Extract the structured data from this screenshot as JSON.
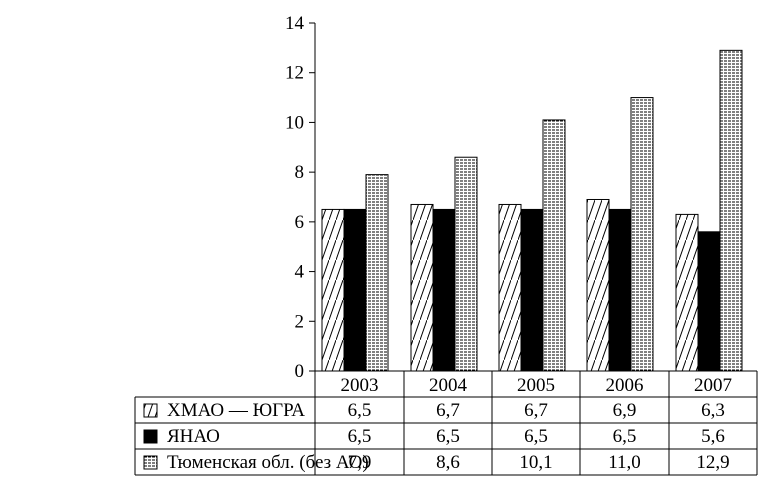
{
  "chart_data": {
    "type": "bar",
    "categories": [
      "2003",
      "2004",
      "2005",
      "2006",
      "2007"
    ],
    "series": [
      {
        "name": "ХМАО — ЮГРА",
        "pattern": "diagonal",
        "values_display": [
          "6,5",
          "6,7",
          "6,7",
          "6,9",
          "6,3"
        ],
        "values": [
          6.5,
          6.7,
          6.7,
          6.9,
          6.3
        ]
      },
      {
        "name": "ЯНАО",
        "pattern": "solid",
        "values_display": [
          "6,5",
          "6,5",
          "6,5",
          "6,5",
          "5,6"
        ],
        "values": [
          6.5,
          6.5,
          6.5,
          6.5,
          5.6
        ]
      },
      {
        "name": "Тюменская обл. (без АО)",
        "pattern": "horizontal-dashed",
        "values_display": [
          "7,9",
          "8,6",
          "10,1",
          "11,0",
          "12,9"
        ],
        "values": [
          7.9,
          8.6,
          10.1,
          11.0,
          12.9
        ]
      }
    ],
    "y_ticks": [
      "0",
      "2",
      "4",
      "6",
      "8",
      "10",
      "12",
      "14"
    ],
    "ylim": [
      0,
      14
    ],
    "grid": false,
    "legend": "data table below chart",
    "colors": {
      "ink": "#000000",
      "background": "#ffffff"
    }
  }
}
